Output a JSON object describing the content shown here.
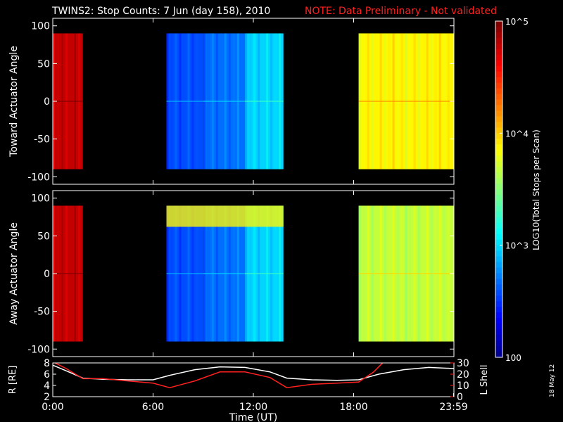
{
  "header": {
    "title": "TWINS2: Stop Counts:  7 Jun (day 158), 2010",
    "note": "NOTE: Data Preliminary - Not validated"
  },
  "stamp": "18 May 12",
  "colors": {
    "background": "#000000",
    "foreground": "#ffffff",
    "note": "#ff2020",
    "lshell": "#ff2020"
  },
  "chart_data": [
    {
      "type": "heatmap",
      "ylabel": "Toward Actuator Angle",
      "ylim": [
        -110,
        110
      ],
      "yticks": [
        "100",
        "50",
        "0",
        "-50",
        "-100"
      ],
      "y_tick_values": [
        100,
        50,
        0,
        -50,
        -100
      ],
      "xlim_hours": [
        0,
        24
      ],
      "data_angle_range": [
        -90,
        90
      ],
      "log10_counts_by_time": [
        {
          "start_h": 0.0,
          "end_h": 1.8,
          "log10_counts": 4.8
        },
        {
          "start_h": 6.8,
          "end_h": 9.0,
          "log10_counts": 2.6
        },
        {
          "start_h": 9.0,
          "end_h": 11.5,
          "log10_counts": 2.7
        },
        {
          "start_h": 11.5,
          "end_h": 13.8,
          "log10_counts": 3.0
        },
        {
          "start_h": 18.3,
          "end_h": 24.0,
          "log10_counts": 3.9
        }
      ]
    },
    {
      "type": "heatmap",
      "ylabel": "Away Actuator Angle",
      "ylim": [
        -110,
        110
      ],
      "yticks": [
        "100",
        "50",
        "0",
        "-50",
        "-100"
      ],
      "y_tick_values": [
        100,
        50,
        0,
        -50,
        -100
      ],
      "xlim_hours": [
        0,
        24
      ],
      "data_angle_range": [
        -90,
        90
      ],
      "log10_counts_by_time": [
        {
          "start_h": 0.0,
          "end_h": 1.8,
          "log10_counts": 4.8
        },
        {
          "start_h": 6.8,
          "end_h": 9.0,
          "log10_counts": 2.6
        },
        {
          "start_h": 9.0,
          "end_h": 11.5,
          "log10_counts": 2.7
        },
        {
          "start_h": 11.5,
          "end_h": 13.8,
          "log10_counts": 3.0
        },
        {
          "start_h": 18.3,
          "end_h": 24.0,
          "log10_counts": 3.7
        }
      ],
      "high_angle_band": {
        "angle_range": [
          62,
          90
        ],
        "start_h": 6.8,
        "end_h": 13.8,
        "log10_counts": 3.9
      }
    },
    {
      "type": "line",
      "ylabel": "R [RE]",
      "ylim": [
        2,
        8
      ],
      "yticks": [
        "8",
        "6",
        "4",
        "2"
      ],
      "y_tick_values": [
        8,
        6,
        4,
        2
      ],
      "y2label": "L Shell",
      "y2lim": [
        0,
        30
      ],
      "y2ticks": [
        "30",
        "20",
        "10",
        "0"
      ],
      "y2_tick_values": [
        30,
        20,
        10,
        0
      ],
      "xlabel": "Time (UT)",
      "xticks": [
        "0:00",
        "6:00",
        "12:00",
        "18:00",
        "23:59"
      ],
      "x_tick_hours": [
        0,
        6,
        12,
        18,
        23.98
      ],
      "series": [
        {
          "axis": "left",
          "color": "#ffffff",
          "x_hours": [
            0,
            0.8,
            1.8,
            3,
            4.5,
            6,
            7,
            8.5,
            10,
            11.5,
            13,
            14,
            15.5,
            17,
            18.3,
            19.5,
            21,
            22.5,
            24
          ],
          "y": [
            7.6,
            6.6,
            5.3,
            5.1,
            5.0,
            5.0,
            5.8,
            6.8,
            7.3,
            7.2,
            6.4,
            5.3,
            5.0,
            4.9,
            5.0,
            6.0,
            6.8,
            7.2,
            7.0
          ]
        },
        {
          "axis": "right",
          "color": "#ff2020",
          "x_hours": [
            0,
            0.8,
            1.8,
            3,
            4.5,
            6,
            7,
            8.5,
            10,
            11.5,
            13,
            14,
            15.5,
            17,
            18.3,
            19.2,
            19.8
          ],
          "y": [
            31,
            25,
            16,
            16,
            14,
            12,
            8,
            14,
            22,
            22,
            17,
            8,
            11,
            12,
            13,
            22,
            31
          ]
        }
      ]
    },
    {
      "type": "colorbar",
      "label": "LOG10(Total Stops per Scan)",
      "scale": "log",
      "range": [
        100,
        100000
      ],
      "ticks": [
        "10^5",
        "10^4",
        "10^3",
        "100"
      ],
      "tick_values": [
        100000,
        10000,
        1000,
        100
      ]
    }
  ]
}
